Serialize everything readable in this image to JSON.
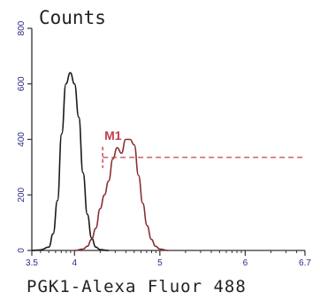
{
  "chart_data": {
    "type": "line",
    "ylabel": "Counts",
    "xlabel": "PGK1-Alexa Fluor 488",
    "x_scale": "log",
    "xlim_log10": [
      3.5,
      6.7
    ],
    "ylim": [
      0,
      800
    ],
    "y_ticks": [
      {
        "value": 0,
        "label": "0"
      },
      {
        "value": 200,
        "label": "200"
      },
      {
        "value": 400,
        "label": "400"
      },
      {
        "value": 600,
        "label": "600"
      },
      {
        "value": 800,
        "label": "800"
      }
    ],
    "x_ticks": [
      {
        "log10": 3.5,
        "label": "3.5"
      },
      {
        "log10": 4,
        "label": "4"
      },
      {
        "log10": 5,
        "label": "5"
      },
      {
        "log10": 6,
        "label": "6"
      },
      {
        "log10": 6.7,
        "label": "6.7"
      }
    ],
    "colors": {
      "control": "#1a1a1a",
      "sample": "#8a3030",
      "gate": "#c0404e",
      "axes": "#333333",
      "tick_labels": "#2a2a8a"
    },
    "series": [
      {
        "points": [
          [
            3.5,
            0
          ],
          [
            3.6,
            2
          ],
          [
            3.7,
            12
          ],
          [
            3.75,
            60
          ],
          [
            3.8,
            180
          ],
          [
            3.85,
            420
          ],
          [
            3.9,
            600
          ],
          [
            3.95,
            640
          ],
          [
            4.0,
            600
          ],
          [
            4.05,
            480
          ],
          [
            4.1,
            280
          ],
          [
            4.15,
            130
          ],
          [
            4.2,
            45
          ],
          [
            4.25,
            12
          ],
          [
            4.3,
            3
          ],
          [
            4.4,
            0
          ]
        ]
      },
      {
        "points": [
          [
            4.0,
            0
          ],
          [
            4.1,
            5
          ],
          [
            4.15,
            15
          ],
          [
            4.2,
            40
          ],
          [
            4.25,
            80
          ],
          [
            4.3,
            150
          ],
          [
            4.35,
            200
          ],
          [
            4.4,
            250
          ],
          [
            4.45,
            330
          ],
          [
            4.5,
            370
          ],
          [
            4.55,
            350
          ],
          [
            4.6,
            400
          ],
          [
            4.65,
            400
          ],
          [
            4.7,
            380
          ],
          [
            4.75,
            270
          ],
          [
            4.8,
            170
          ],
          [
            4.85,
            90
          ],
          [
            4.9,
            40
          ],
          [
            4.95,
            15
          ],
          [
            5.0,
            5
          ],
          [
            5.1,
            0
          ]
        ]
      }
    ],
    "gate": {
      "label": "M1",
      "x_start_log10": 4.33,
      "x_end_log10": 6.7,
      "y": 335
    }
  }
}
